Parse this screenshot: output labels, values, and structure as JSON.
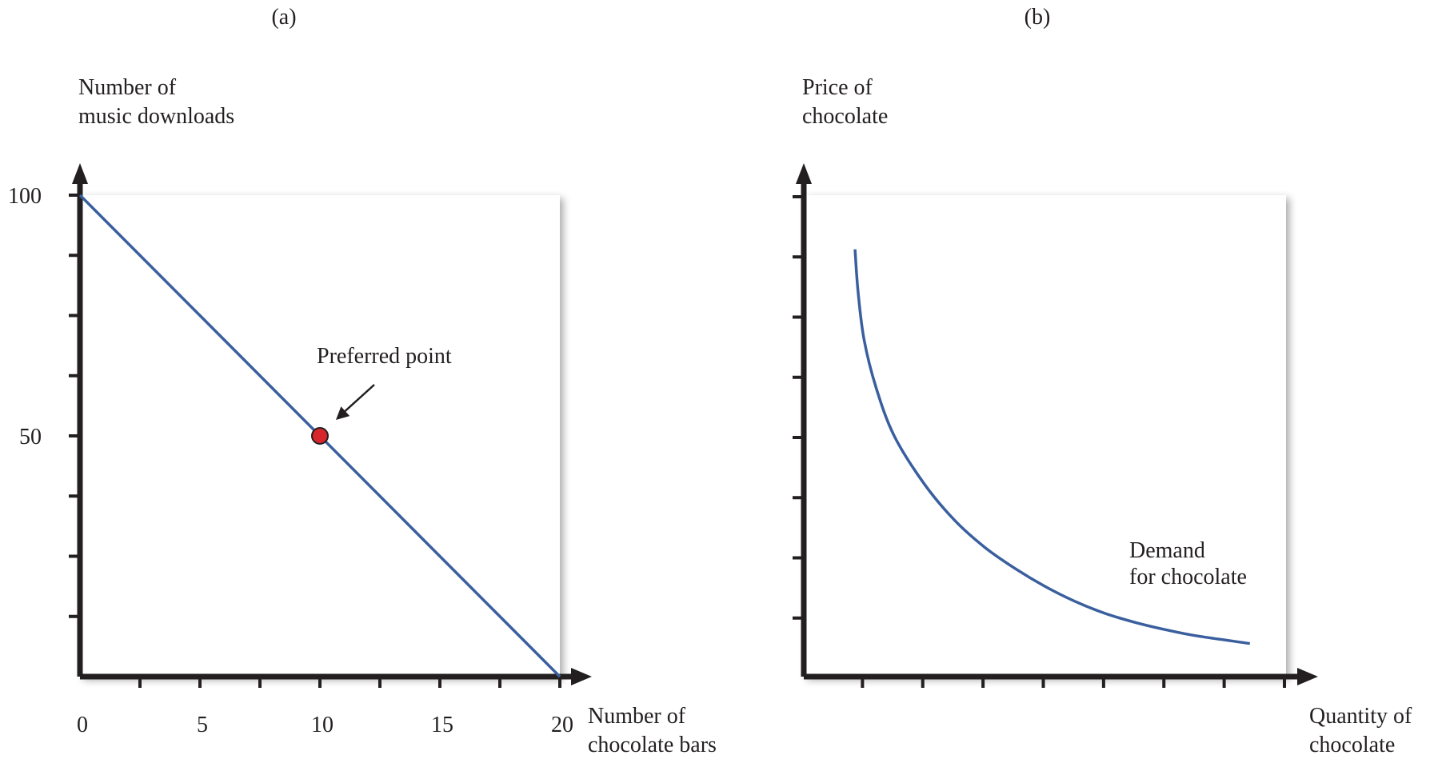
{
  "chart_data": [
    {
      "panel_label": "(a)",
      "type": "line",
      "ylabel": [
        "Number of",
        "music downloads"
      ],
      "xlabel": [
        "Number of",
        "chocolate bars"
      ],
      "xlim": [
        0,
        20
      ],
      "ylim": [
        0,
        100
      ],
      "x_ticks": [
        0,
        2.5,
        5,
        7.5,
        10,
        12.5,
        15,
        17.5,
        20
      ],
      "x_tick_labels": [
        {
          "value": 0,
          "label": "0"
        },
        {
          "value": 5,
          "label": "5"
        },
        {
          "value": 10,
          "label": "10"
        },
        {
          "value": 15,
          "label": "15"
        },
        {
          "value": 20,
          "label": "20"
        }
      ],
      "y_ticks": [
        12.5,
        25,
        37.5,
        50,
        62.5,
        75,
        87.5,
        100
      ],
      "y_tick_labels": [
        {
          "value": 50,
          "label": "50"
        },
        {
          "value": 100,
          "label": "100"
        }
      ],
      "series": [
        {
          "x": [
            0,
            20
          ],
          "y": [
            100,
            0
          ],
          "color": "#3a5f9e"
        }
      ],
      "marker": {
        "x": 10,
        "y": 50,
        "color": "#d7262b"
      },
      "annotation": {
        "text": "Preferred point",
        "x": 10,
        "y": 50
      },
      "grid": false,
      "legend": "none"
    },
    {
      "panel_label": "(b)",
      "type": "line",
      "ylabel": [
        "Price of",
        "chocolate"
      ],
      "xlabel": [
        "Quantity of",
        "chocolate"
      ],
      "xlim": [
        0,
        8
      ],
      "ylim": [
        0,
        8
      ],
      "x_ticks": [
        1,
        2,
        3,
        4,
        5,
        6,
        7,
        8
      ],
      "y_ticks": [
        1,
        2,
        3,
        4,
        5,
        6,
        7,
        8
      ],
      "series": [
        {
          "label": [
            "Demand",
            "for chocolate"
          ],
          "color": "#3a5f9e",
          "x": [
            0.85,
            0.9,
            1.0,
            1.2,
            1.5,
            2.0,
            2.5,
            3.0,
            3.5,
            4.0,
            4.5,
            5.0,
            5.5,
            6.0,
            6.5,
            7.4
          ],
          "y": [
            7.1,
            6.4,
            5.6,
            4.8,
            4.0,
            3.2,
            2.6,
            2.15,
            1.8,
            1.5,
            1.25,
            1.05,
            0.9,
            0.78,
            0.68,
            0.55
          ]
        }
      ],
      "grid": false,
      "legend": "none"
    }
  ]
}
